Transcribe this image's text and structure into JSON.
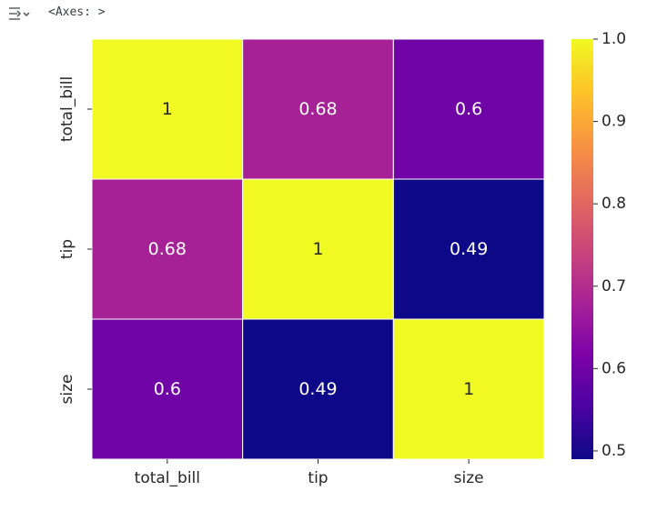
{
  "output": {
    "icon": "output-collapse-icon",
    "text": "<Axes: >"
  },
  "chart_data": {
    "type": "heatmap",
    "title": "",
    "xlabel": "",
    "ylabel": "",
    "x_categories": [
      "total_bill",
      "tip",
      "size"
    ],
    "y_categories": [
      "total_bill",
      "tip",
      "size"
    ],
    "values": [
      [
        1,
        0.68,
        0.6
      ],
      [
        0.68,
        1,
        0.49
      ],
      [
        0.6,
        0.49,
        1
      ]
    ],
    "annotations": [
      [
        "1",
        "0.68",
        "0.6"
      ],
      [
        "0.68",
        "1",
        "0.49"
      ],
      [
        "0.6",
        "0.49",
        "1"
      ]
    ],
    "colormap": "plasma",
    "colorbar": {
      "range": [
        0.49,
        1.0
      ],
      "ticks": [
        0.5,
        0.6,
        0.7,
        0.8,
        0.9,
        1.0
      ],
      "tick_labels": [
        "0.5",
        "0.6",
        "0.7",
        "0.8",
        "0.9",
        "1.0"
      ]
    },
    "cell_border_color": "#ffffff"
  }
}
